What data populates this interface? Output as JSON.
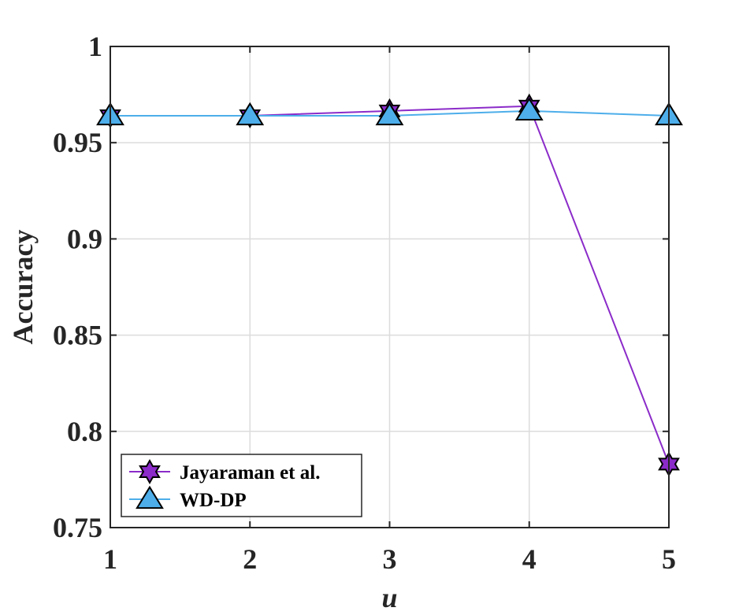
{
  "chart_data": {
    "type": "line",
    "xlabel": "u",
    "ylabel": "Accuracy",
    "x": [
      1,
      2,
      3,
      4,
      5
    ],
    "xlim": [
      1,
      5
    ],
    "ylim": [
      0.75,
      1
    ],
    "xticks": [
      "1",
      "2",
      "3",
      "4",
      "5"
    ],
    "yticks": [
      "0.75",
      "0.8",
      "0.85",
      "0.9",
      "0.95",
      "1"
    ],
    "grid": true,
    "legend_position": "bottom-left",
    "series": [
      {
        "name": "Jayaraman et al.",
        "values": [
          0.964,
          0.964,
          0.9665,
          0.969,
          0.783
        ],
        "color": "#8B2BC9",
        "marker": "hexagram"
      },
      {
        "name": "WD-DP",
        "values": [
          0.964,
          0.964,
          0.964,
          0.9665,
          0.964
        ],
        "color": "#4DAEEA",
        "marker": "triangle"
      }
    ]
  }
}
